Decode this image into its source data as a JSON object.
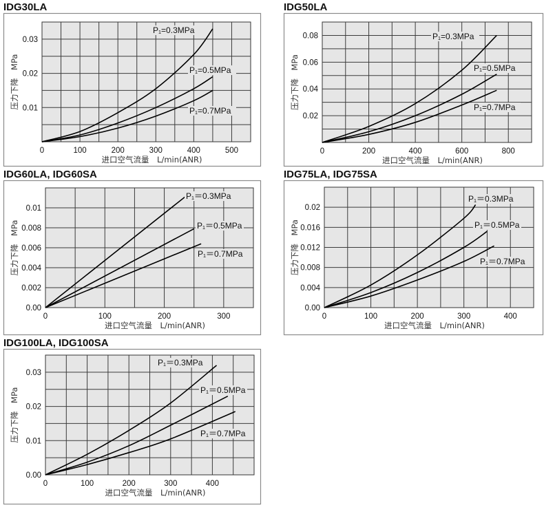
{
  "chart_data": [
    {
      "type": "line",
      "title": "IDG30LA",
      "xlabel": "进口空气流量　L/min(ANR)",
      "ylabel": "压力下降　MPa",
      "xlim": [
        0,
        550
      ],
      "ylim": [
        0,
        0.035
      ],
      "xgrid_step": 50,
      "ygrid_step": 0.005,
      "grid": true,
      "xticks": [
        0,
        100,
        200,
        300,
        400,
        500
      ],
      "xtick_labels": [
        "0",
        "100",
        "200",
        "300",
        "400",
        "500"
      ],
      "yticks": [
        0.01,
        0.02,
        0.03
      ],
      "ytick_labels": [
        "0.01",
        "0.02",
        "0.03"
      ],
      "series": [
        {
          "name": "P₁=0.3MPa",
          "x": [
            0,
            100,
            200,
            300,
            400,
            450
          ],
          "y": [
            0,
            0.003,
            0.0085,
            0.0155,
            0.0255,
            0.033
          ]
        },
        {
          "name": "P₁=0.5MPa",
          "x": [
            0,
            100,
            200,
            300,
            400,
            450
          ],
          "y": [
            0,
            0.002,
            0.0055,
            0.01,
            0.0155,
            0.019
          ]
        },
        {
          "name": "P₁=0.7MPa",
          "x": [
            0,
            100,
            200,
            300,
            400,
            450
          ],
          "y": [
            0,
            0.0015,
            0.004,
            0.0075,
            0.012,
            0.015
          ]
        }
      ]
    },
    {
      "type": "line",
      "title": "IDG50LA",
      "xlabel": "进口空气流量　L/min(ANR)",
      "ylabel": "压力下降　MPa",
      "xlim": [
        0,
        900
      ],
      "ylim": [
        0,
        0.09
      ],
      "xgrid_step": 100,
      "ygrid_step": 0.01,
      "grid": true,
      "xticks": [
        0,
        200,
        400,
        600,
        800
      ],
      "xtick_labels": [
        "0",
        "200",
        "400",
        "600",
        "800"
      ],
      "yticks": [
        0.02,
        0.04,
        0.06,
        0.08
      ],
      "ytick_labels": [
        "0.02",
        "0.04",
        "0.06",
        "0.08"
      ],
      "series": [
        {
          "name": "P₁=0.3MPa",
          "x": [
            0,
            200,
            400,
            600,
            750
          ],
          "y": [
            0,
            0.012,
            0.029,
            0.054,
            0.08
          ]
        },
        {
          "name": "P₁=0.5MPa",
          "x": [
            0,
            200,
            400,
            600,
            750
          ],
          "y": [
            0,
            0.008,
            0.02,
            0.036,
            0.051
          ]
        },
        {
          "name": "P₁=0.7MPa",
          "x": [
            0,
            200,
            400,
            600,
            750
          ],
          "y": [
            0,
            0.006,
            0.015,
            0.028,
            0.039
          ]
        }
      ]
    },
    {
      "type": "line",
      "title": "IDG60LA, IDG60SA",
      "xlabel": "进口空气流量　L/min(ANR)",
      "ylabel": "压力下降　MPa",
      "xlim": [
        0,
        350
      ],
      "ylim": [
        0,
        0.012
      ],
      "xgrid_step": 50,
      "ygrid_step": 0.002,
      "grid": true,
      "xticks": [
        0,
        100,
        200,
        300
      ],
      "xtick_labels": [
        "0",
        "100",
        "200",
        "300"
      ],
      "yticks": [
        0,
        0.002,
        0.004,
        0.006,
        0.008,
        0.01
      ],
      "ytick_labels": [
        "0.00",
        "0.002",
        "0.004",
        "0.006",
        "0.008",
        "0.01"
      ],
      "series": [
        {
          "name": "P₁＝0.3MPa",
          "x": [
            0,
            235
          ],
          "y": [
            0,
            0.0111
          ]
        },
        {
          "name": "P₁＝0.5MPa",
          "x": [
            0,
            250
          ],
          "y": [
            0,
            0.0079
          ]
        },
        {
          "name": "P₁＝0.7MPa",
          "x": [
            0,
            262
          ],
          "y": [
            0,
            0.0064
          ]
        }
      ]
    },
    {
      "type": "line",
      "title": "IDG75LA, IDG75SA",
      "xlabel": "进口空气流量　L/min(ANR)",
      "ylabel": "压力下降　MPa",
      "xlim": [
        0,
        450
      ],
      "ylim": [
        0,
        0.024
      ],
      "xgrid_step": 50,
      "ygrid_step": 0.004,
      "grid": true,
      "xticks": [
        0,
        100,
        200,
        300,
        400
      ],
      "xtick_labels": [
        "0",
        "100",
        "200",
        "300",
        "400"
      ],
      "yticks": [
        0,
        0.004,
        0.008,
        0.012,
        0.016,
        0.02
      ],
      "ytick_labels": [
        "0.00",
        "0.004",
        "0.008",
        "0.012",
        "0.016",
        "0.02"
      ],
      "series": [
        {
          "name": "P₁＝0.3MPa",
          "x": [
            0,
            100,
            200,
            300,
            325
          ],
          "y": [
            0,
            0.0045,
            0.0105,
            0.0178,
            0.0205
          ]
        },
        {
          "name": "P₁＝0.5MPa",
          "x": [
            0,
            100,
            200,
            300,
            350
          ],
          "y": [
            0,
            0.003,
            0.007,
            0.012,
            0.0152
          ]
        },
        {
          "name": "P₁＝0.7MPa",
          "x": [
            0,
            100,
            200,
            300,
            365
          ],
          "y": [
            0,
            0.0023,
            0.0055,
            0.0092,
            0.0123
          ]
        }
      ]
    },
    {
      "type": "line",
      "title": "IDG100LA, IDG100SA",
      "xlabel": "进口空气流量　L/min(ANR)",
      "ylabel": "压力下降　MPa",
      "xlim": [
        0,
        500
      ],
      "ylim": [
        0,
        0.035
      ],
      "xgrid_step": 50,
      "ygrid_step": 0.005,
      "grid": true,
      "xticks": [
        0,
        100,
        200,
        300,
        400
      ],
      "xtick_labels": [
        "0",
        "100",
        "200",
        "300",
        "400"
      ],
      "yticks": [
        0,
        0.01,
        0.02,
        0.03
      ],
      "ytick_labels": [
        "0.00",
        "0.01",
        "0.02",
        "0.03"
      ],
      "series": [
        {
          "name": "P₁＝0.3MPa",
          "x": [
            0,
            100,
            200,
            300,
            410
          ],
          "y": [
            0,
            0.006,
            0.013,
            0.021,
            0.032
          ]
        },
        {
          "name": "P₁＝0.5MPa",
          "x": [
            0,
            100,
            200,
            300,
            437
          ],
          "y": [
            0,
            0.0037,
            0.0085,
            0.0145,
            0.023
          ]
        },
        {
          "name": "P₁＝0.7MPa",
          "x": [
            0,
            100,
            200,
            300,
            455
          ],
          "y": [
            0,
            0.003,
            0.0065,
            0.0105,
            0.0185
          ]
        }
      ]
    }
  ]
}
